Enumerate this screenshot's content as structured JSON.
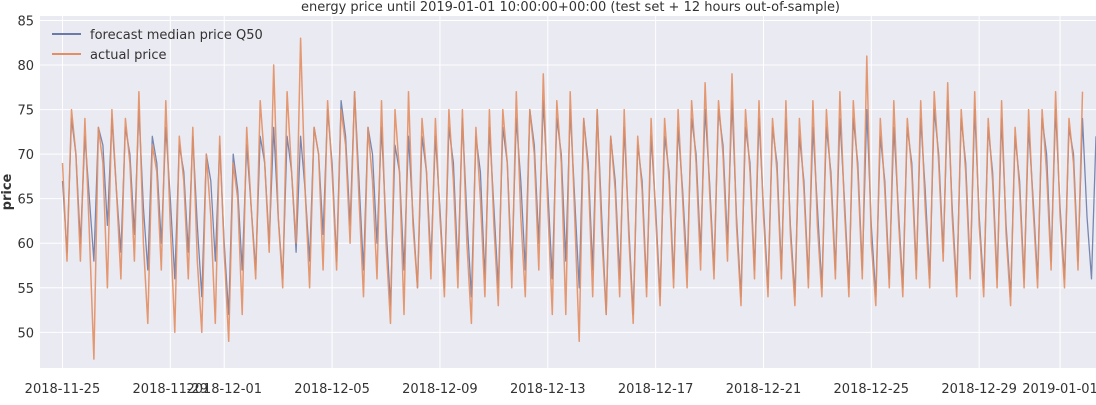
{
  "chart_data": {
    "type": "line",
    "title": "energy price until 2019-01-01 10:00:00+00:00 (test set + 12 hours out-of-sample)",
    "xlabel": "",
    "ylabel": "price",
    "xlim": [
      "2018-11-24T04:00",
      "2019-01-02T08:00"
    ],
    "ylim": [
      46.0,
      85.5
    ],
    "grid": true,
    "legend": "top-left",
    "x_ticks": [
      "2018-11-25",
      "2018-11-29",
      "2018-12-01",
      "2018-12-05",
      "2018-12-09",
      "2018-12-13",
      "2018-12-17",
      "2018-12-21",
      "2018-12-25",
      "2018-12-29",
      "2019-01-01"
    ],
    "y_ticks": [
      50,
      55,
      60,
      65,
      70,
      75,
      80,
      85
    ],
    "start": "2018-11-25T00:00",
    "step_hours": 4,
    "daily_profile_hours": [
      0,
      4,
      8,
      12,
      16,
      20
    ],
    "series": [
      {
        "name": "forecast median price Q50",
        "color": "#6b7ba8",
        "values": [
          67,
          59,
          74,
          70,
          60,
          72,
          65,
          58,
          73,
          71,
          62,
          74,
          66,
          59,
          73,
          70,
          61,
          75,
          64,
          57,
          72,
          69,
          60,
          73,
          65,
          56,
          71,
          68,
          59,
          72,
          62,
          54,
          70,
          67,
          58,
          71,
          60,
          52,
          70,
          66,
          57,
          71,
          64,
          57,
          72,
          69,
          60,
          73,
          63,
          56,
          72,
          68,
          59,
          72,
          66,
          58,
          73,
          70,
          61,
          75,
          69,
          58,
          76,
          72,
          62,
          77,
          67,
          57,
          73,
          70,
          60,
          73,
          62,
          53,
          71,
          68,
          57,
          72,
          63,
          55,
          72,
          68,
          58,
          72,
          64,
          55,
          73,
          69,
          57,
          74,
          63,
          54,
          72,
          68,
          56,
          73,
          64,
          55,
          73,
          69,
          57,
          74,
          67,
          57,
          75,
          71,
          60,
          76,
          66,
          56,
          74,
          70,
          58,
          75,
          65,
          55,
          74,
          69,
          57,
          75,
          63,
          52,
          72,
          67,
          56,
          73,
          62,
          52,
          71,
          67,
          55,
          72,
          64,
          54,
          72,
          68,
          56,
          73,
          66,
          57,
          74,
          70,
          59,
          75,
          67,
          57,
          75,
          71,
          60,
          76,
          63,
          54,
          73,
          69,
          57,
          74,
          64,
          55,
          73,
          69,
          57,
          74,
          62,
          54,
          72,
          67,
          56,
          73,
          64,
          55,
          73,
          68,
          57,
          74,
          65,
          55,
          74,
          69,
          57,
          75,
          62,
          54,
          72,
          67,
          56,
          73,
          64,
          55,
          73,
          69,
          57,
          74,
          66,
          56,
          75,
          70,
          59,
          76,
          64,
          55,
          74,
          69,
          57,
          75,
          63,
          55,
          73,
          68,
          56,
          74,
          62,
          54,
          72,
          67,
          56,
          73,
          65,
          56,
          74,
          70,
          58,
          75,
          64,
          56,
          73,
          70,
          58,
          74,
          63,
          56,
          72
        ]
      },
      {
        "name": "actual price",
        "color": "#e38f63",
        "values": [
          69,
          58,
          75,
          70,
          58,
          74,
          61,
          47,
          73,
          69,
          55,
          75,
          66,
          56,
          74,
          69,
          58,
          77,
          60,
          51,
          71,
          68,
          57,
          76,
          62,
          50,
          72,
          67,
          56,
          73,
          58,
          50,
          70,
          63,
          51,
          72,
          59,
          49,
          69,
          65,
          52,
          73,
          64,
          56,
          76,
          69,
          59,
          80,
          63,
          55,
          77,
          68,
          60,
          83,
          66,
          55,
          73,
          70,
          57,
          76,
          68,
          57,
          75,
          71,
          60,
          77,
          65,
          54,
          73,
          67,
          56,
          76,
          60,
          51,
          75,
          68,
          52,
          77,
          62,
          55,
          74,
          68,
          56,
          74,
          63,
          54,
          75,
          67,
          55,
          75,
          60,
          51,
          73,
          65,
          54,
          75,
          62,
          53,
          75,
          69,
          55,
          77,
          63,
          54,
          75,
          70,
          57,
          79,
          64,
          52,
          76,
          69,
          52,
          77,
          63,
          49,
          74,
          68,
          54,
          75,
          61,
          52,
          72,
          66,
          54,
          75,
          61,
          51,
          72,
          66,
          54,
          74,
          63,
          53,
          74,
          67,
          55,
          75,
          65,
          55,
          76,
          69,
          57,
          78,
          66,
          56,
          76,
          70,
          58,
          79,
          62,
          53,
          75,
          68,
          56,
          76,
          63,
          54,
          74,
          68,
          56,
          76,
          61,
          53,
          74,
          66,
          55,
          76,
          62,
          54,
          75,
          67,
          56,
          77,
          64,
          54,
          76,
          68,
          56,
          81,
          60,
          53,
          74,
          66,
          55,
          76,
          63,
          54,
          74,
          68,
          56,
          76,
          64,
          55,
          77,
          69,
          58,
          78,
          63,
          54,
          75,
          68,
          56,
          77,
          62,
          54,
          74,
          67,
          55,
          76,
          61,
          53,
          73,
          66,
          55,
          75,
          64,
          55,
          75,
          68,
          57,
          77,
          63,
          55,
          74,
          69,
          57,
          77
        ]
      }
    ]
  }
}
